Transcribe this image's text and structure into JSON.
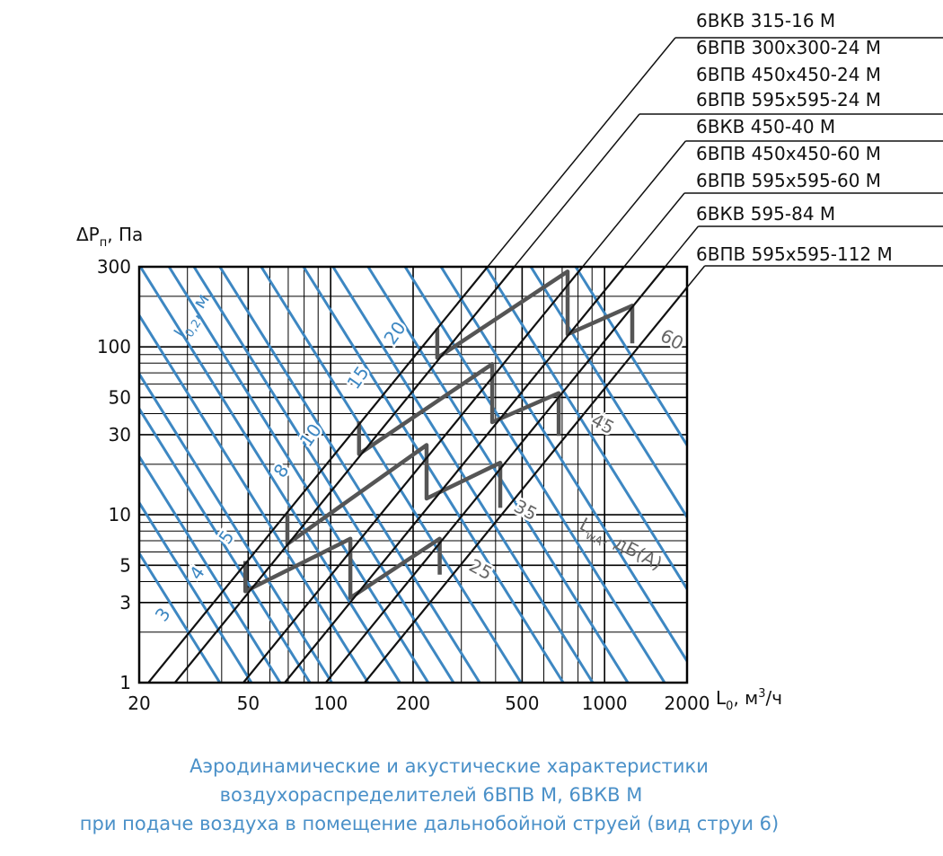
{
  "chart_data": {
    "type": "line",
    "log_x": true,
    "log_y": true,
    "grid": true,
    "xlabel": {
      "main": "L",
      "sub": "0",
      "unit": ", м",
      "sup": "3",
      "tail": "/ч"
    },
    "ylabel": {
      "main": "ΔP",
      "sub": "п",
      "unit": ", Па"
    },
    "xlim": [
      20,
      2000
    ],
    "ylim": [
      1,
      300
    ],
    "xticks": [
      20,
      50,
      100,
      200,
      500,
      1000,
      2000
    ],
    "yticks": [
      1,
      3,
      5,
      10,
      30,
      50,
      100,
      300
    ],
    "xminor": [
      30,
      40,
      60,
      70,
      80,
      90,
      300,
      400,
      600,
      700,
      800,
      900
    ],
    "yminor": [
      2,
      4,
      6,
      7,
      8,
      9,
      20,
      40,
      60,
      70,
      80,
      90,
      200
    ],
    "devices": [
      {
        "names": [
          "6ВКВ 315-16 М"
        ],
        "color": "#111111",
        "x": [
          21.6,
          374
        ],
        "values": [
          1,
          300
        ]
      },
      {
        "names": [
          "6ВПВ 300x300-24 М",
          "6ВПВ 450x450-24 М",
          "6ВПВ 595x595-24 М"
        ],
        "color": "#111111",
        "x": [
          27,
          468
        ],
        "values": [
          1,
          300
        ]
      },
      {
        "names": [
          "6ВКВ 450-40 М"
        ],
        "color": "#111111",
        "x": [
          48,
          831
        ],
        "values": [
          1,
          300
        ]
      },
      {
        "names": [
          "6ВПВ 450x450-60 М",
          "6ВПВ 595x595-60 М"
        ],
        "color": "#111111",
        "x": [
          68,
          1178
        ],
        "values": [
          1,
          300
        ]
      },
      {
        "names": [
          "6ВКВ 595-84 М"
        ],
        "color": "#111111",
        "x": [
          96,
          1663
        ],
        "values": [
          1,
          300
        ]
      },
      {
        "names": [
          "6ВПВ 595x595-112 М"
        ],
        "color": "#111111",
        "x": [
          133,
          2000
        ],
        "values": [
          1,
          226
        ]
      }
    ],
    "ranges": [
      {
        "color": "#555555",
        "x": [
          48.8,
          48.8,
          118,
          118,
          250,
          250
        ],
        "values": [
          5.3,
          3.5,
          7.2,
          3.2,
          7.2,
          4.4
        ]
      },
      {
        "color": "#555555",
        "x": [
          69.5,
          69.5,
          224,
          224,
          416,
          416
        ],
        "values": [
          10.1,
          6.7,
          26,
          12.5,
          20.4,
          11
        ]
      },
      {
        "color": "#555555",
        "x": [
          127,
          127,
          389,
          389,
          680,
          680
        ],
        "values": [
          36,
          23,
          79,
          35.6,
          53,
          29.5
        ]
      },
      {
        "color": "#555555",
        "x": [
          245,
          245,
          733,
          733,
          1262,
          1262
        ],
        "values": [
          129,
          86,
          281,
          119,
          176,
          105
        ]
      }
    ],
    "throw_label": {
      "main": "l",
      "sub": "0,2",
      "unit": ", м"
    },
    "throw_lines": {
      "color": "#3d87c2",
      "lines": [
        {
          "label": 3,
          "x": [
            39.4,
            4.46
          ],
          "values": [
            1,
            300
          ]
        },
        {
          "label": null,
          "x": [
            51.4,
            5.8
          ],
          "values": [
            1,
            300
          ]
        },
        {
          "label": 4,
          "x": [
            65.4,
            7.4
          ],
          "values": [
            1,
            300
          ]
        },
        {
          "label": null,
          "x": [
            84,
            9.5
          ],
          "values": [
            1,
            300
          ]
        },
        {
          "label": 5,
          "x": [
            101,
            11.4
          ],
          "values": [
            1,
            300
          ]
        },
        {
          "label": null,
          "x": [
            137,
            15.5
          ],
          "values": [
            1,
            300
          ]
        },
        {
          "label": null,
          "x": [
            179,
            20.2
          ],
          "values": [
            1,
            300
          ]
        },
        {
          "label": 8,
          "x": [
            227,
            25.7
          ],
          "values": [
            1,
            300
          ]
        },
        {
          "label": null,
          "x": [
            281,
            31.7
          ],
          "values": [
            1,
            300
          ]
        },
        {
          "label": 10,
          "x": [
            350,
            39.4
          ],
          "values": [
            1,
            300
          ]
        },
        {
          "label": null,
          "x": [
            495,
            55.8
          ],
          "values": [
            1,
            300
          ]
        },
        {
          "label": 15,
          "x": [
            706,
            79.6
          ],
          "values": [
            1,
            300
          ]
        },
        {
          "label": null,
          "x": [
            905,
            102
          ],
          "values": [
            1,
            300
          ]
        },
        {
          "label": 20,
          "x": [
            1216,
            137
          ],
          "values": [
            1,
            300
          ]
        },
        {
          "label": null,
          "x": [
            1656,
            187
          ],
          "values": [
            1,
            300
          ]
        },
        {
          "label": null,
          "x": [
            2240,
            253
          ],
          "values": [
            1,
            300
          ]
        },
        {
          "label": null,
          "x": [
            3270,
            369
          ],
          "values": [
            1,
            300
          ]
        },
        {
          "label": null,
          "x": [
            4765,
            538
          ],
          "values": [
            1,
            300
          ]
        },
        {
          "label": null,
          "x": [
            6950,
            784
          ],
          "values": [
            1,
            300
          ]
        }
      ]
    },
    "sound_label": {
      "main": "L",
      "sub": "wA",
      "unit": ", дБ(А)"
    },
    "sound_levels": [
      25,
      35,
      45,
      60
    ]
  },
  "caption": [
    "Аэродинамические и акустические характеристики",
    "воздухораспределителей 6ВПВ М, 6ВКВ М",
    "при подаче воздуха в помещение дальнобойной струей (вид струи 6)"
  ]
}
